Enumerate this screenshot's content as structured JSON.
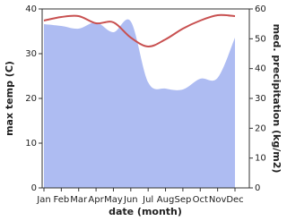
{
  "chart_data": {
    "type": "line-area",
    "x_label": "date (month)",
    "y_label": "max temp (C)",
    "y2_label": "med. precipitation (kg/m2)",
    "categories": [
      "Jan",
      "Feb",
      "Mar",
      "Apr",
      "May",
      "Jun",
      "Jul",
      "Aug",
      "Sep",
      "Oct",
      "Nov",
      "Dec"
    ],
    "ylim": [
      0,
      40
    ],
    "yticks": [
      0,
      10,
      20,
      30,
      40
    ],
    "y2lim": [
      0,
      60
    ],
    "y2ticks": [
      0,
      10,
      20,
      30,
      40,
      50,
      60
    ],
    "series": [
      {
        "name": "med. precipitation",
        "type": "area",
        "axis": "y2",
        "color": "#aebcf2",
        "values": [
          54.9,
          54.3,
          53.4,
          55.5,
          52.2,
          55.8,
          35.4,
          33.3,
          33.0,
          36.6,
          36.9,
          50.4
        ]
      },
      {
        "name": "max temp",
        "type": "line",
        "axis": "y",
        "color": "#c85050",
        "values": [
          37.4,
          38.2,
          38.4,
          36.8,
          37.0,
          33.6,
          31.6,
          33.2,
          35.6,
          37.4,
          38.6,
          38.4
        ]
      }
    ]
  }
}
